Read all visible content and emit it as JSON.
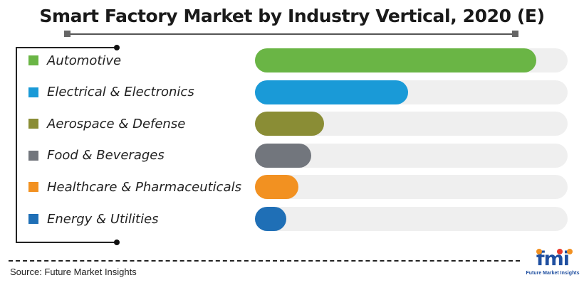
{
  "chart_data": {
    "type": "bar",
    "orientation": "horizontal",
    "title": "Smart Factory Market by Industry Vertical, 2020 (E)",
    "categories": [
      "Automotive",
      "Electrical & Electronics",
      "Aerospace & Defense",
      "Food & Beverages",
      "Healthcare & Pharmaceuticals",
      "Energy & Utilities"
    ],
    "values": [
      0.9,
      0.49,
      0.22,
      0.18,
      0.14,
      0.1
    ],
    "value_unit": "fraction of full bar",
    "colors": [
      "#6ab545",
      "#1a9ad7",
      "#8a8d35",
      "#72767d",
      "#f29121",
      "#1f6fb6"
    ],
    "track_color": "#efefef",
    "grid": false,
    "legend": "left"
  },
  "source": "Source: Future Market Insights",
  "logo": {
    "word": "fmi",
    "tagline": "Future Market Insights",
    "dot_colors": [
      "#f29121",
      "#e8392b",
      "#f29121"
    ]
  }
}
